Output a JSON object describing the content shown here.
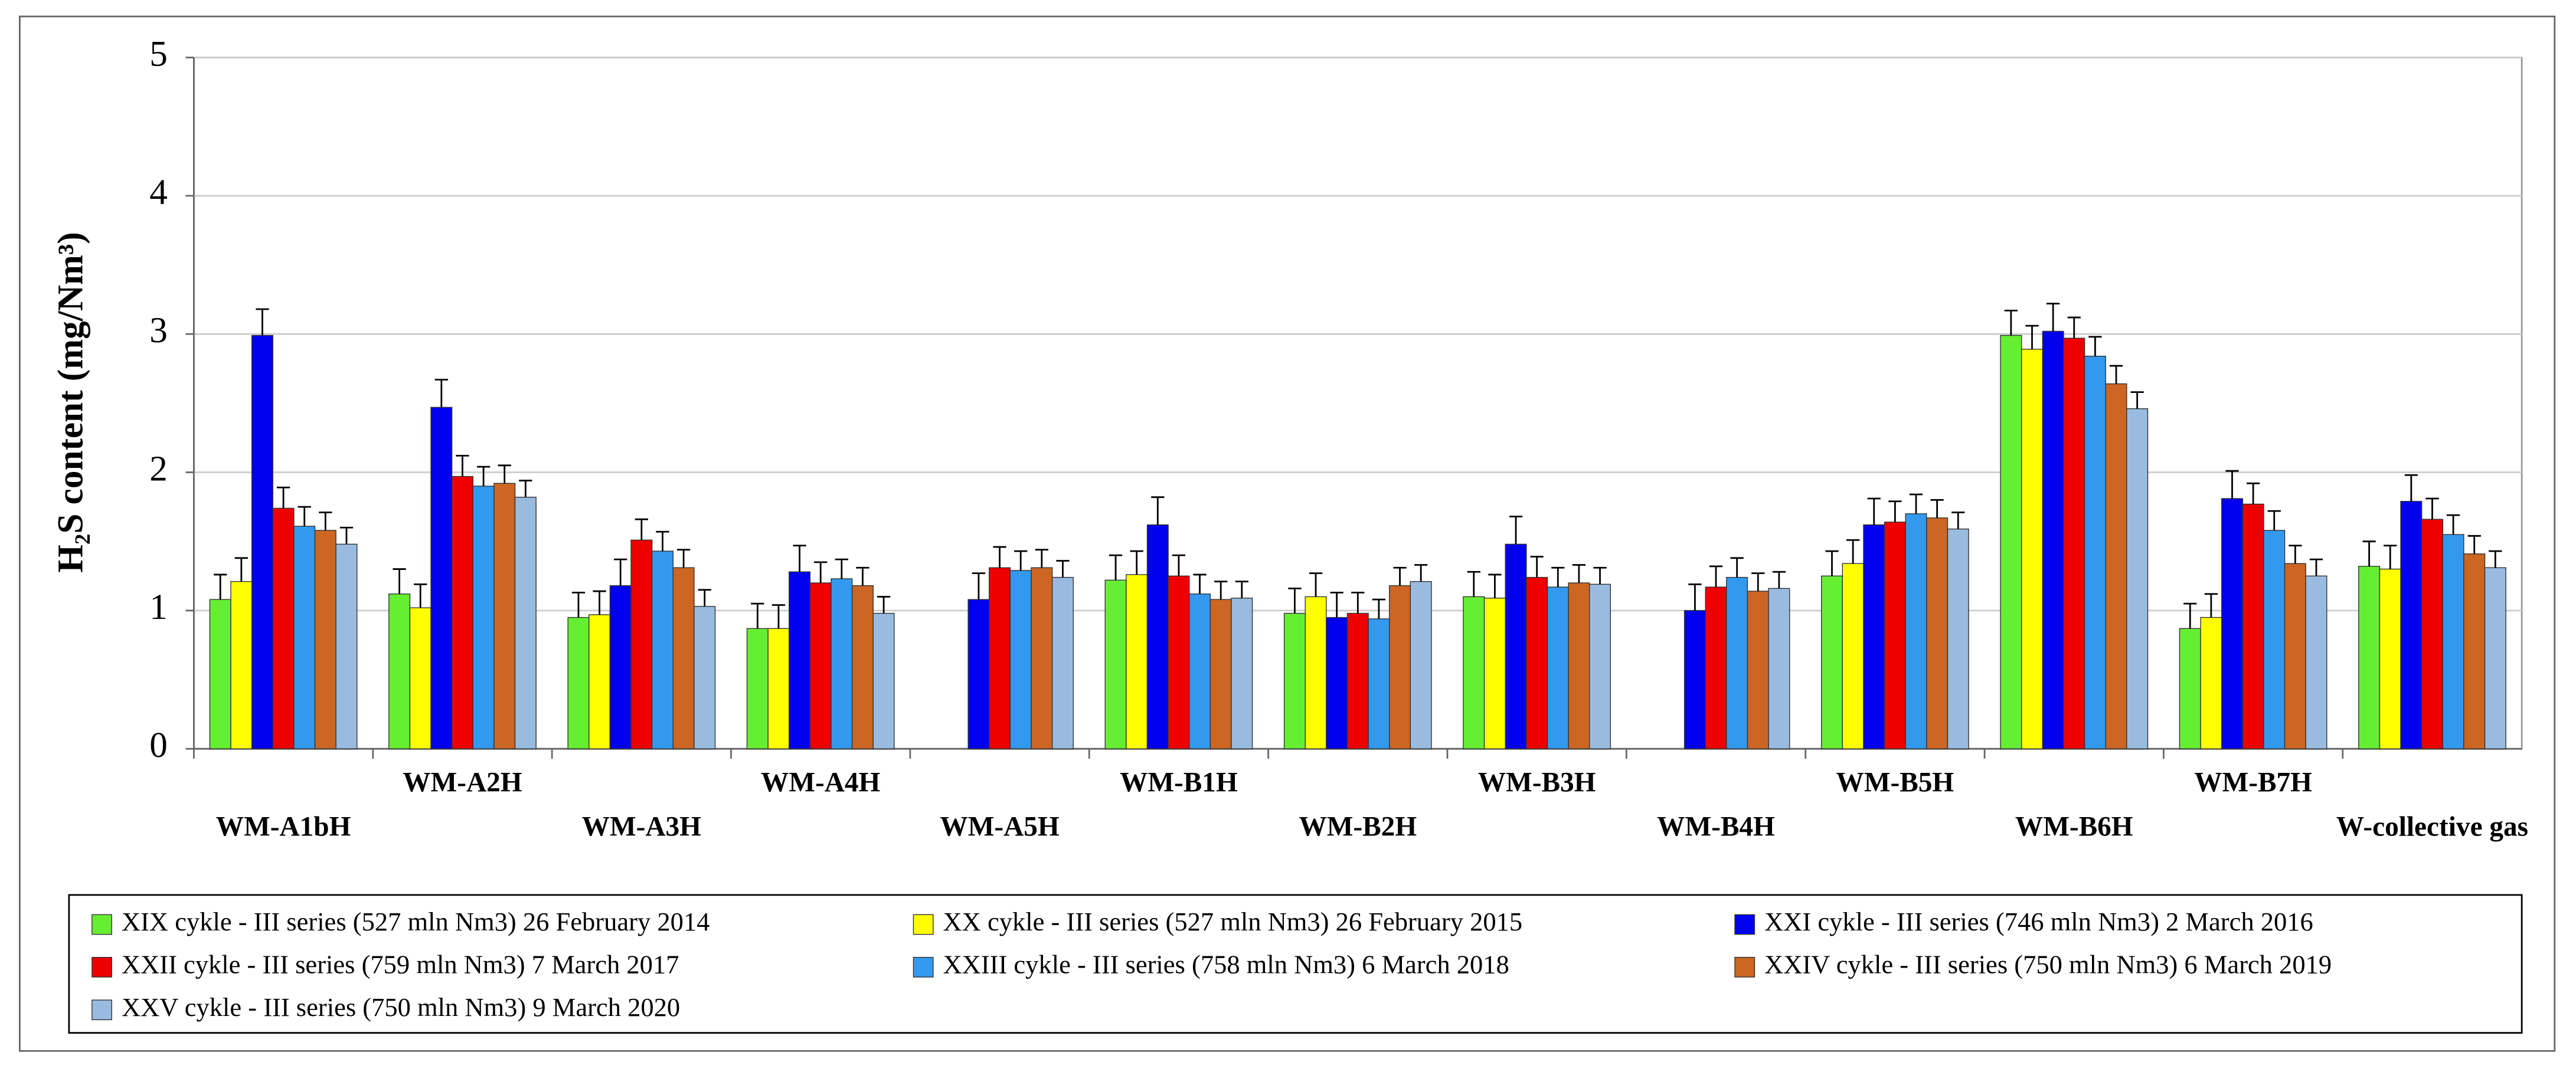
{
  "chart_data": {
    "type": "bar",
    "ylabel": "H₂S content (mg/Nm³)",
    "categories": [
      "WM-A1bH",
      "WM-A2H",
      "WM-A3H",
      "WM-A4H",
      "WM-A5H",
      "WM-B1H",
      "WM-B2H",
      "WM-B3H",
      "WM-B4H",
      "WM-B5H",
      "WM-B6H",
      "WM-B7H",
      "W-collective gas"
    ],
    "ylim": [
      0,
      5
    ],
    "yticks": [
      0,
      1,
      2,
      3,
      4,
      5
    ],
    "grid": true,
    "series": [
      {
        "name": "XIX cykle - III series (527 mln Nm3) 26 February 2014",
        "color": "#66ee33",
        "values": [
          1.08,
          1.12,
          0.95,
          0.87,
          null,
          1.22,
          0.98,
          1.1,
          null,
          1.25,
          2.99,
          0.87,
          1.32
        ],
        "errors": [
          0.18,
          0.18,
          0.18,
          0.18,
          null,
          0.18,
          0.18,
          0.18,
          null,
          0.18,
          0.18,
          0.18,
          0.18
        ]
      },
      {
        "name": "XX cykle - III series (527 mln Nm3) 26 February 2015",
        "color": "#ffff00",
        "values": [
          1.21,
          1.02,
          0.97,
          0.87,
          null,
          1.26,
          1.1,
          1.09,
          null,
          1.34,
          2.89,
          0.95,
          1.3
        ],
        "errors": [
          0.17,
          0.17,
          0.17,
          0.17,
          null,
          0.17,
          0.17,
          0.17,
          null,
          0.17,
          0.17,
          0.17,
          0.17
        ]
      },
      {
        "name": "XXI cykle - III series (746 mln Nm3) 2 March 2016",
        "color": "#0000ee",
        "values": [
          2.99,
          2.47,
          1.18,
          1.28,
          1.08,
          1.62,
          0.95,
          1.48,
          1.0,
          1.62,
          3.02,
          1.81,
          1.79
        ],
        "errors": [
          0.19,
          0.2,
          0.19,
          0.19,
          0.19,
          0.2,
          0.18,
          0.2,
          0.19,
          0.19,
          0.2,
          0.2,
          0.19
        ]
      },
      {
        "name": "XXII cykle - III series (759 mln Nm3) 7 March 2017",
        "color": "#ee0000",
        "values": [
          1.74,
          1.97,
          1.51,
          1.2,
          1.31,
          1.25,
          0.98,
          1.24,
          1.17,
          1.64,
          2.97,
          1.77,
          1.66
        ],
        "errors": [
          0.15,
          0.15,
          0.15,
          0.15,
          0.15,
          0.15,
          0.15,
          0.15,
          0.15,
          0.15,
          0.15,
          0.15,
          0.15
        ]
      },
      {
        "name": "XXIII cykle - III series (758 mln Nm3) 6 March 2018",
        "color": "#3399ee",
        "values": [
          1.61,
          1.9,
          1.43,
          1.23,
          1.29,
          1.12,
          0.94,
          1.17,
          1.24,
          1.7,
          2.84,
          1.58,
          1.55
        ],
        "errors": [
          0.14,
          0.14,
          0.14,
          0.14,
          0.14,
          0.14,
          0.14,
          0.14,
          0.14,
          0.14,
          0.14,
          0.14,
          0.14
        ]
      },
      {
        "name": "XXIV cykle - III series (750 mln Nm3) 6 March 2019",
        "color": "#cc6622",
        "values": [
          1.58,
          1.92,
          1.31,
          1.18,
          1.31,
          1.08,
          1.18,
          1.2,
          1.14,
          1.67,
          2.64,
          1.34,
          1.41
        ],
        "errors": [
          0.13,
          0.13,
          0.13,
          0.13,
          0.13,
          0.13,
          0.13,
          0.13,
          0.13,
          0.13,
          0.13,
          0.13,
          0.13
        ]
      },
      {
        "name": "XXV cykle - III series (750 mln Nm3) 9 March 2020",
        "color": "#99bbe0",
        "values": [
          1.48,
          1.82,
          1.03,
          0.98,
          1.24,
          1.09,
          1.21,
          1.19,
          1.16,
          1.59,
          2.46,
          1.25,
          1.31
        ],
        "errors": [
          0.12,
          0.12,
          0.12,
          0.12,
          0.12,
          0.12,
          0.12,
          0.12,
          0.12,
          0.12,
          0.12,
          0.12,
          0.12
        ]
      }
    ]
  }
}
